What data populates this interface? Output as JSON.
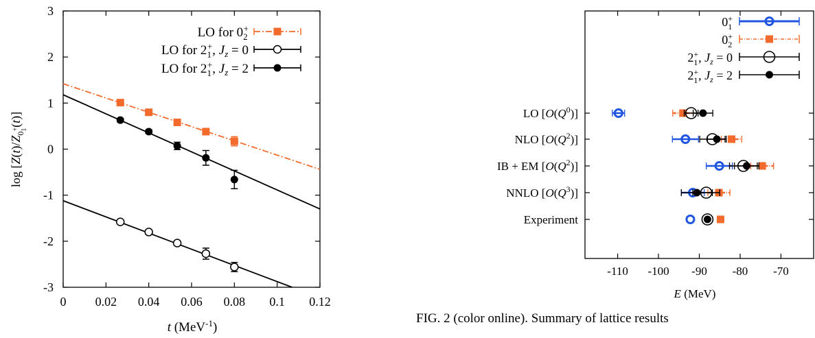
{
  "colors": {
    "orange": "#f26b2c",
    "blue": "#1f55e0",
    "black": "#000000"
  },
  "chart_data": [
    {
      "type": "scatter",
      "title": "",
      "xlabel": "t (MeV-1)",
      "ylabel": "log [Z(t)/Z01+(t)]",
      "xlim": [
        0,
        0.12
      ],
      "ylim": [
        -3,
        3
      ],
      "x_ticks": [
        "0",
        "0.02",
        "0.04",
        "0.06",
        "0.08",
        "0.1",
        "0.12"
      ],
      "y_ticks": [
        "3",
        "2",
        "1",
        "0",
        "-1",
        "-2",
        "-3"
      ],
      "legend_position": "top-right",
      "series": [
        {
          "name": "LO for 02+",
          "marker": "filled-square",
          "color": "#f26b2c",
          "points": [
            {
              "x": 0.0267,
              "y": 1.01,
              "err": 0.05
            },
            {
              "x": 0.04,
              "y": 0.8,
              "err": 0.05
            },
            {
              "x": 0.0533,
              "y": 0.58,
              "err": 0.06
            },
            {
              "x": 0.0667,
              "y": 0.38,
              "err": 0.07
            },
            {
              "x": 0.08,
              "y": 0.17,
              "err": 0.1
            }
          ],
          "fit": {
            "x0": 0,
            "y0": 1.42,
            "x1": 0.12,
            "y1": -0.44,
            "style": "dash-dot"
          }
        },
        {
          "name": "LO for 21+, Jz = 0",
          "marker": "open-circle",
          "color": "#000000",
          "points": [
            {
              "x": 0.0267,
              "y": -1.58,
              "err": 0.04
            },
            {
              "x": 0.04,
              "y": -1.8,
              "err": 0.05
            },
            {
              "x": 0.0533,
              "y": -2.04,
              "err": 0.05
            },
            {
              "x": 0.0667,
              "y": -2.27,
              "err": 0.12
            },
            {
              "x": 0.08,
              "y": -2.56,
              "err": 0.1
            }
          ],
          "fit": {
            "x0": 0,
            "y0": -1.12,
            "x1": 0.107,
            "y1": -3.0,
            "style": "solid"
          }
        },
        {
          "name": "LO for 21+, Jz = 2",
          "marker": "filled-circle",
          "color": "#000000",
          "points": [
            {
              "x": 0.0267,
              "y": 0.63,
              "err": 0.04
            },
            {
              "x": 0.04,
              "y": 0.38,
              "err": 0.04
            },
            {
              "x": 0.0533,
              "y": 0.07,
              "err": 0.08
            },
            {
              "x": 0.0667,
              "y": -0.19,
              "err": 0.16
            },
            {
              "x": 0.08,
              "y": -0.66,
              "err": 0.2
            }
          ],
          "fit": {
            "x0": 0,
            "y0": 1.18,
            "x1": 0.12,
            "y1": -1.3,
            "style": "solid"
          }
        }
      ]
    },
    {
      "type": "scatter",
      "title": "",
      "xlabel": "E (MeV)",
      "ylabel": "",
      "xlim": [
        -118,
        -62
      ],
      "x_ticks": [
        "-110",
        "-100",
        "-90",
        "-80",
        "-70"
      ],
      "categories": [
        "LO [O(Q0)]",
        "NLO [O(Q2)]",
        "IB + EM [O(Q2)]",
        "NNLO [O(Q3)]",
        "Experiment"
      ],
      "legend_position": "top-right",
      "series": [
        {
          "name": "01+",
          "marker": "open-circle-thick",
          "color": "#1f55e0",
          "values": [
            -109.8,
            -93.4,
            -85.1,
            -91.6,
            -92.2
          ],
          "errors": [
            1.5,
            3.2,
            3.2,
            2.8,
            0
          ]
        },
        {
          "name": "02+",
          "marker": "filled-square",
          "color": "#f26b2c",
          "values": [
            -94.0,
            -82.1,
            -74.6,
            -85.2,
            -84.8
          ],
          "errors": [
            2.5,
            2.5,
            2.8,
            2.7,
            0
          ]
        },
        {
          "name": "21+, Jz = 0",
          "marker": "open-circle-big",
          "color": "#000000",
          "values": [
            -92.0,
            -86.8,
            -79.2,
            -88.3,
            -88.0
          ],
          "errors": [
            1.7,
            3.1,
            3.4,
            3.3,
            0
          ]
        },
        {
          "name": "21+, Jz = 2",
          "marker": "filled-circle",
          "color": "#000000",
          "values": [
            -89.1,
            -85.7,
            -78.4,
            -90.6,
            -88.0
          ],
          "errors": [
            2.4,
            2.3,
            3.0,
            3.8,
            0
          ]
        }
      ]
    }
  ],
  "caption": "FIG. 2 (color online).  Summary of lattice results"
}
